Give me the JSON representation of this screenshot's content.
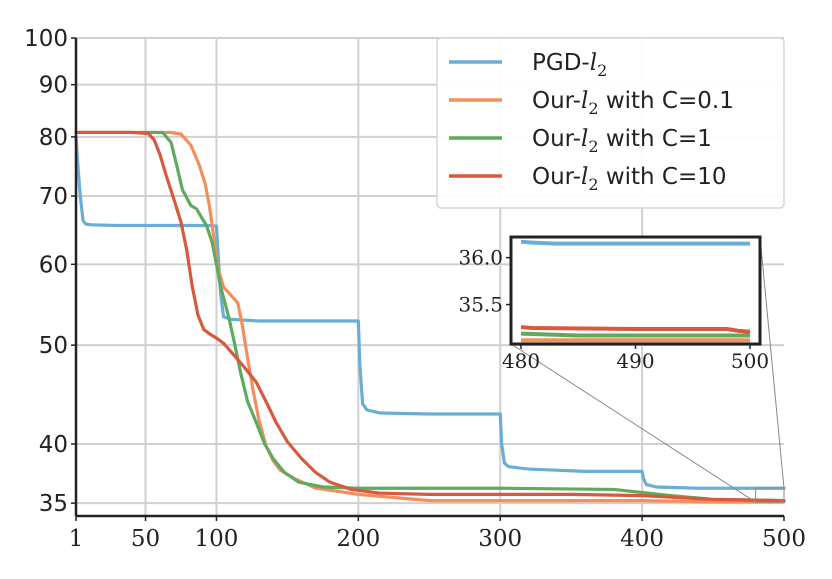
{
  "chart_data": {
    "type": "line",
    "title": "",
    "xlabel": "",
    "ylabel": "",
    "xlim": [
      1,
      500
    ],
    "ylim": [
      34,
      100
    ],
    "y_scale": "log",
    "grid": true,
    "legend_position": "top-right",
    "x_ticks": [
      1,
      50,
      100,
      200,
      300,
      400,
      500
    ],
    "x_tick_labels": [
      "1",
      "50",
      "100",
      "200",
      "300",
      "400",
      "500"
    ],
    "y_ticks": [
      35,
      40,
      50,
      60,
      70,
      80,
      90,
      100
    ],
    "y_tick_labels": [
      "35",
      "40",
      "50",
      "60",
      "70",
      "80",
      "90",
      "100"
    ],
    "series": [
      {
        "name": "PGD-l2",
        "legend_prefix": "PGD-",
        "legend_var": "l",
        "legend_sub": "2",
        "legend_suffix": "",
        "color": "#6aaed6",
        "points": [
          [
            1,
            80
          ],
          [
            2,
            76
          ],
          [
            4,
            70
          ],
          [
            6,
            66.2
          ],
          [
            8,
            65.7
          ],
          [
            12,
            65.6
          ],
          [
            30,
            65.5
          ],
          [
            60,
            65.5
          ],
          [
            95,
            65.5
          ],
          [
            100,
            65.4
          ],
          [
            101,
            62
          ],
          [
            103,
            56
          ],
          [
            105,
            53.3
          ],
          [
            110,
            53
          ],
          [
            130,
            52.8
          ],
          [
            170,
            52.8
          ],
          [
            200,
            52.8
          ],
          [
            201,
            48
          ],
          [
            203,
            43.8
          ],
          [
            206,
            43.2
          ],
          [
            215,
            42.9
          ],
          [
            250,
            42.8
          ],
          [
            300,
            42.8
          ],
          [
            301,
            40
          ],
          [
            303,
            38.3
          ],
          [
            306,
            38
          ],
          [
            320,
            37.8
          ],
          [
            360,
            37.6
          ],
          [
            400,
            37.6
          ],
          [
            401,
            37
          ],
          [
            403,
            36.5
          ],
          [
            410,
            36.3
          ],
          [
            440,
            36.2
          ],
          [
            480,
            36.2
          ],
          [
            500,
            36.2
          ]
        ]
      },
      {
        "name": "Our-l2 with C=0.1",
        "legend_prefix": "Our-",
        "legend_var": "l",
        "legend_sub": "2",
        "legend_suffix": " with C=0.1",
        "color": "#f28f5c",
        "points": [
          [
            1,
            80.8
          ],
          [
            40,
            80.8
          ],
          [
            68,
            80.8
          ],
          [
            75,
            80.5
          ],
          [
            82,
            78.5
          ],
          [
            88,
            75
          ],
          [
            92,
            72
          ],
          [
            95,
            68.5
          ],
          [
            98,
            64
          ],
          [
            101,
            59.5
          ],
          [
            105,
            57
          ],
          [
            110,
            56
          ],
          [
            115,
            55
          ],
          [
            118,
            52.5
          ],
          [
            122,
            48.5
          ],
          [
            126,
            45
          ],
          [
            130,
            42.2
          ],
          [
            135,
            39.8
          ],
          [
            140,
            38.5
          ],
          [
            145,
            37.7
          ],
          [
            155,
            37
          ],
          [
            170,
            36.2
          ],
          [
            200,
            35.7
          ],
          [
            250,
            35.2
          ],
          [
            300,
            35.2
          ],
          [
            350,
            35.2
          ],
          [
            400,
            35.2
          ],
          [
            450,
            35.1
          ],
          [
            500,
            35.1
          ]
        ]
      },
      {
        "name": "Our-l2 with C=1",
        "legend_prefix": "Our-",
        "legend_var": "l",
        "legend_sub": "2",
        "legend_suffix": " with C=1",
        "color": "#5eaa5e",
        "points": [
          [
            1,
            80.8
          ],
          [
            50,
            80.8
          ],
          [
            62,
            80.8
          ],
          [
            68,
            79
          ],
          [
            72,
            75
          ],
          [
            76,
            71
          ],
          [
            82,
            68.5
          ],
          [
            86,
            68
          ],
          [
            90,
            66.5
          ],
          [
            93,
            65.5
          ],
          [
            97,
            63
          ],
          [
            100,
            60
          ],
          [
            103,
            57
          ],
          [
            106,
            55
          ],
          [
            109,
            53
          ],
          [
            113,
            50
          ],
          [
            117,
            47
          ],
          [
            122,
            44
          ],
          [
            128,
            42
          ],
          [
            134,
            40
          ],
          [
            140,
            38.7
          ],
          [
            148,
            37.5
          ],
          [
            158,
            36.7
          ],
          [
            175,
            36.3
          ],
          [
            200,
            36.2
          ],
          [
            300,
            36.2
          ],
          [
            380,
            36.1
          ],
          [
            420,
            35.6
          ],
          [
            450,
            35.3
          ],
          [
            500,
            35.2
          ]
        ]
      },
      {
        "name": "Our-l2 with C=10",
        "legend_prefix": "Our-",
        "legend_var": "l",
        "legend_sub": "2",
        "legend_suffix": " with C=10",
        "color": "#d9593f",
        "points": [
          [
            1,
            80.8
          ],
          [
            40,
            80.8
          ],
          [
            52,
            80.6
          ],
          [
            56,
            79.5
          ],
          [
            60,
            77
          ],
          [
            65,
            73
          ],
          [
            70,
            69.5
          ],
          [
            75,
            66
          ],
          [
            79,
            62
          ],
          [
            83,
            57
          ],
          [
            87,
            53.5
          ],
          [
            91,
            51.8
          ],
          [
            95,
            51.3
          ],
          [
            100,
            50.8
          ],
          [
            105,
            50.2
          ],
          [
            110,
            49.3
          ],
          [
            115,
            48.4
          ],
          [
            120,
            47.5
          ],
          [
            128,
            46
          ],
          [
            135,
            44
          ],
          [
            142,
            42
          ],
          [
            150,
            40.2
          ],
          [
            160,
            38.7
          ],
          [
            170,
            37.5
          ],
          [
            180,
            36.7
          ],
          [
            195,
            36.1
          ],
          [
            215,
            35.8
          ],
          [
            250,
            35.7
          ],
          [
            300,
            35.7
          ],
          [
            350,
            35.7
          ],
          [
            400,
            35.6
          ],
          [
            450,
            35.3
          ],
          [
            500,
            35.2
          ]
        ]
      }
    ],
    "inset": {
      "xlim": [
        480,
        500
      ],
      "ylim": [
        35.08,
        36.22
      ],
      "x_ticks": [
        480,
        490,
        500
      ],
      "x_tick_labels": [
        "480",
        "490",
        "500"
      ],
      "y_ticks": [
        35.5,
        36.0
      ],
      "y_tick_labels": [
        "35.5",
        "36.0"
      ],
      "series_values": [
        {
          "series": "PGD-l2",
          "points": [
            [
              480,
              36.17
            ],
            [
              481,
              36.16
            ],
            [
              483,
              36.15
            ],
            [
              490,
              36.15
            ],
            [
              500,
              36.15
            ]
          ]
        },
        {
          "series": "Our-l2 with C=0.1",
          "points": [
            [
              480,
              35.12
            ],
            [
              490,
              35.12
            ],
            [
              500,
              35.12
            ]
          ]
        },
        {
          "series": "Our-l2 with C=1",
          "points": [
            [
              480,
              35.19
            ],
            [
              485,
              35.17
            ],
            [
              490,
              35.17
            ],
            [
              500,
              35.17
            ]
          ]
        },
        {
          "series": "Our-l2 with C=10",
          "points": [
            [
              480,
              35.26
            ],
            [
              481,
              35.25
            ],
            [
              490,
              35.24
            ],
            [
              498,
              35.24
            ],
            [
              499,
              35.22
            ],
            [
              500,
              35.21
            ]
          ]
        }
      ]
    }
  }
}
